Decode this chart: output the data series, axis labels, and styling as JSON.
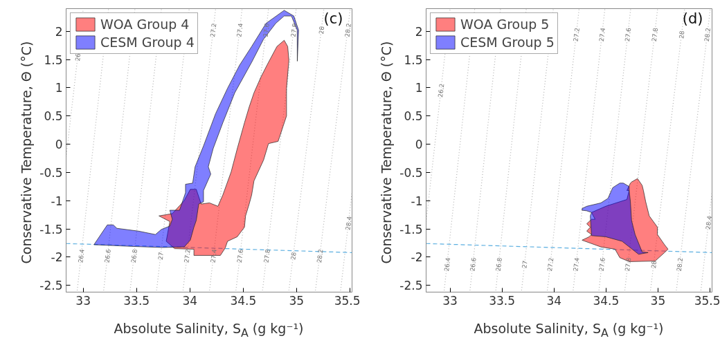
{
  "chart_data": [
    {
      "type": "area",
      "xlabel": "Absolute Salinity, S$_{A}$ (g kg⁻¹)",
      "ylabel": "Conservative Temperature,  Θ (°C)",
      "xlim": [
        32.84,
        35.52
      ],
      "ylim": [
        -2.62,
        2.4
      ],
      "xticks": [
        33,
        33.5,
        34,
        34.5,
        35,
        35.5
      ],
      "yticks": [
        -2.5,
        -2,
        -1.5,
        -1,
        -0.5,
        0,
        0.5,
        1,
        1.5,
        2
      ],
      "legend": "top left",
      "grid": false,
      "series": [
        {
          "type": "line",
          "color": "#b0b0b0",
          "line_style": "dotted",
          "x": [
            32.84,
            33.0
          ],
          "values": [
            -0.23,
            2.39
          ]
        },
        {
          "type": "line",
          "color": "#b0b0b0",
          "line_style": "dotted",
          "x": [
            32.944,
            33.237
          ],
          "values": [
            -2.59,
            2.39
          ]
        },
        {
          "type": "line",
          "color": "#b0b0b0",
          "line_style": "dotted",
          "x": [
            33.192,
            33.485
          ],
          "values": [
            -2.59,
            2.39
          ]
        },
        {
          "type": "line",
          "color": "#b0b0b0",
          "line_style": "dotted",
          "x": [
            33.44,
            33.733
          ],
          "values": [
            -2.59,
            2.39
          ]
        },
        {
          "type": "line",
          "color": "#b0b0b0",
          "line_style": "dotted",
          "x": [
            33.688,
            33.993
          ],
          "values": [
            -2.59,
            2.39
          ]
        },
        {
          "type": "line",
          "color": "#b0b0b0",
          "line_style": "dotted",
          "x": [
            33.936,
            34.241
          ],
          "values": [
            -2.59,
            2.39
          ]
        },
        {
          "type": "line",
          "color": "#b0b0b0",
          "line_style": "dotted",
          "x": [
            34.184,
            34.489
          ],
          "values": [
            -2.59,
            2.39
          ]
        },
        {
          "type": "line",
          "color": "#b0b0b0",
          "line_style": "dotted",
          "x": [
            34.432,
            34.737
          ],
          "values": [
            -2.59,
            2.39
          ]
        },
        {
          "type": "line",
          "color": "#b0b0b0",
          "line_style": "dotted",
          "x": [
            34.681,
            34.996
          ],
          "values": [
            -2.59,
            2.39
          ]
        },
        {
          "type": "line",
          "color": "#b0b0b0",
          "line_style": "dotted",
          "x": [
            34.928,
            35.256
          ],
          "values": [
            -2.59,
            2.39
          ]
        },
        {
          "type": "line",
          "color": "#b0b0b0",
          "line_style": "dotted",
          "x": [
            35.177,
            35.503
          ],
          "values": [
            -2.59,
            2.39
          ]
        },
        {
          "type": "line",
          "color": "#b0b0b0",
          "line_style": "dotted",
          "x": [
            35.413,
            35.52
          ],
          "values": [
            -2.59,
            -0.84
          ]
        },
        {
          "type": "line",
          "color": "#5aaee0",
          "line_style": "dashed",
          "x": [
            32.84,
            35.52
          ],
          "values": [
            -1.76,
            -1.92
          ]
        },
        {
          "name": "WOA Group 4",
          "color": "#ff0000",
          "x": [
            34.038,
            34.286,
            34.331,
            34.353,
            34.444,
            34.512,
            34.522,
            34.556,
            34.579,
            34.601,
            34.691,
            34.737,
            34.827,
            34.906,
            34.906,
            34.928,
            34.917,
            34.884,
            34.816,
            34.737,
            34.669,
            34.601,
            34.556,
            34.512,
            34.444,
            34.387,
            34.309,
            34.263,
            34.184,
            34.106,
            34.06,
            34.004,
            33.947,
            33.835,
            33.71,
            33.812,
            33.778,
            33.857,
            34.038
          ],
          "values": [
            -1.97,
            -1.97,
            -1.84,
            -1.72,
            -1.64,
            -1.47,
            -1.27,
            -1.06,
            -0.9,
            -0.65,
            -0.28,
            0.01,
            0.05,
            0.5,
            0.99,
            1.49,
            1.73,
            1.84,
            1.73,
            1.45,
            1.2,
            0.91,
            0.66,
            0.38,
            -0.08,
            -0.49,
            -0.9,
            -1.1,
            -1.04,
            -1.06,
            -0.8,
            -0.8,
            -1.0,
            -1.23,
            -1.27,
            -1.37,
            -1.72,
            -1.85,
            -1.86
          ]
        },
        {
          "name": "CESM Group 4",
          "color": "#0000ff",
          "x": [
            33.101,
            33.226,
            33.282,
            33.316,
            33.519,
            33.677,
            33.733,
            33.812,
            33.835,
            33.812,
            33.903,
            33.959,
            33.959,
            34.026,
            34.049,
            34.128,
            34.241,
            34.353,
            34.466,
            34.579,
            34.714,
            34.884,
            34.974,
            35.019,
            35.007,
            35.006,
            34.952,
            34.884,
            34.805,
            34.691,
            34.579,
            34.421,
            34.309,
            34.218,
            34.173,
            34.196,
            34.128,
            34.128,
            34.083,
            34.06,
            34.038,
            34.004,
            33.947,
            33.744,
            33.451
          ],
          "values": [
            -1.78,
            -1.43,
            -1.43,
            -1.49,
            -1.54,
            -1.6,
            -1.51,
            -1.45,
            -1.33,
            -1.17,
            -1.17,
            -0.86,
            -0.71,
            -0.69,
            -0.4,
            -0.03,
            0.54,
            0.99,
            1.4,
            1.73,
            2.14,
            2.37,
            2.27,
            2.02,
            1.47,
            2.02,
            2.27,
            2.27,
            2.14,
            1.86,
            1.45,
            0.91,
            0.38,
            -0.08,
            -0.4,
            -0.53,
            -0.82,
            -1.02,
            -1.06,
            -1.35,
            -1.47,
            -1.7,
            -1.82,
            -1.83,
            -1.81
          ]
        }
      ],
      "annotations": [
        "(c)",
        {
          "text": "26",
          "x": 32.948,
          "y": 1.54
        },
        {
          "text": "26.4",
          "x": 32.98,
          "y": -1.98
        },
        {
          "text": "26.6",
          "x": 33.228,
          "y": -1.98
        },
        {
          "text": "26.8",
          "x": 33.476,
          "y": -1.98
        },
        {
          "text": "27",
          "x": 33.725,
          "y": -1.98
        },
        {
          "text": "27.2",
          "x": 33.973,
          "y": -1.98
        },
        {
          "text": "27.4",
          "x": 34.221,
          "y": -1.98
        },
        {
          "text": "27.6",
          "x": 34.469,
          "y": -1.98
        },
        {
          "text": "27.8",
          "x": 34.72,
          "y": -1.98
        },
        {
          "text": "28",
          "x": 34.968,
          "y": -1.98
        },
        {
          "text": "28.2",
          "x": 35.217,
          "y": -1.98
        },
        {
          "text": "28.4",
          "x": 35.486,
          "y": -1.4
        },
        {
          "text": "27.2",
          "x": 34.218,
          "y": 2.02
        },
        {
          "text": "27.4",
          "x": 34.466,
          "y": 2.02
        },
        {
          "text": "27.6",
          "x": 34.714,
          "y": 2.02
        },
        {
          "text": "27.8",
          "x": 34.973,
          "y": 2.02
        },
        {
          "text": "28",
          "x": 35.232,
          "y": 2.02
        },
        {
          "text": "28.2",
          "x": 35.479,
          "y": 2.02
        }
      ]
    },
    {
      "type": "area",
      "xlabel": "Absolute Salinity, S$_{A}$ (g kg⁻¹)",
      "ylabel": "Conservative Temperature,  Θ (°C)",
      "xlim": [
        32.77,
        35.52
      ],
      "ylim": [
        -2.62,
        2.4
      ],
      "xticks": [
        33,
        33.5,
        34,
        34.5,
        35,
        35.5
      ],
      "yticks": [
        -2.5,
        -2,
        -1.5,
        -1,
        -0.5,
        0,
        0.5,
        1,
        1.5,
        2
      ],
      "legend": "top left",
      "grid": false,
      "series": [
        {
          "type": "line",
          "color": "#b0b0b0",
          "line_style": "dotted",
          "x": [
            32.77,
            33.0
          ],
          "values": [
            -1.38,
            2.39
          ]
        },
        {
          "type": "line",
          "color": "#b0b0b0",
          "line_style": "dotted",
          "x": [
            32.944,
            33.237
          ],
          "values": [
            -2.59,
            2.39
          ]
        },
        {
          "type": "line",
          "color": "#b0b0b0",
          "line_style": "dotted",
          "x": [
            33.192,
            33.485
          ],
          "values": [
            -2.59,
            2.39
          ]
        },
        {
          "type": "line",
          "color": "#b0b0b0",
          "line_style": "dotted",
          "x": [
            33.44,
            33.733
          ],
          "values": [
            -2.59,
            2.39
          ]
        },
        {
          "type": "line",
          "color": "#b0b0b0",
          "line_style": "dotted",
          "x": [
            33.688,
            33.993
          ],
          "values": [
            -2.59,
            2.39
          ]
        },
        {
          "type": "line",
          "color": "#b0b0b0",
          "line_style": "dotted",
          "x": [
            33.936,
            34.241
          ],
          "values": [
            -2.59,
            2.39
          ]
        },
        {
          "type": "line",
          "color": "#b0b0b0",
          "line_style": "dotted",
          "x": [
            34.184,
            34.489
          ],
          "values": [
            -2.59,
            2.39
          ]
        },
        {
          "type": "line",
          "color": "#b0b0b0",
          "line_style": "dotted",
          "x": [
            34.432,
            34.737
          ],
          "values": [
            -2.59,
            2.39
          ]
        },
        {
          "type": "line",
          "color": "#b0b0b0",
          "line_style": "dotted",
          "x": [
            34.681,
            34.996
          ],
          "values": [
            -2.59,
            2.39
          ]
        },
        {
          "type": "line",
          "color": "#b0b0b0",
          "line_style": "dotted",
          "x": [
            34.928,
            35.256
          ],
          "values": [
            -2.59,
            2.39
          ]
        },
        {
          "type": "line",
          "color": "#b0b0b0",
          "line_style": "dotted",
          "x": [
            35.177,
            35.503
          ],
          "values": [
            -2.59,
            2.39
          ]
        },
        {
          "type": "line",
          "color": "#b0b0b0",
          "line_style": "dotted",
          "x": [
            35.413,
            35.52
          ],
          "values": [
            -2.59,
            -0.84
          ]
        },
        {
          "type": "line",
          "color": "#5aaee0",
          "line_style": "dashed",
          "x": [
            32.77,
            35.52
          ],
          "values": [
            -1.76,
            -1.92
          ]
        },
        {
          "name": "WOA Group 5",
          "color": "#ff0000",
          "x": [
            34.746,
            34.803,
            34.848,
            34.86,
            34.882,
            34.916,
            34.995,
            34.995,
            35.063,
            35.097,
            35.063,
            34.973,
            34.723,
            34.633,
            34.587,
            34.451,
            34.27,
            34.338,
            34.361,
            34.315,
            34.349,
            34.315,
            34.361,
            34.395,
            34.361,
            34.497,
            34.701,
            34.723,
            34.701,
            34.735
          ],
          "values": [
            -0.67,
            -0.61,
            -0.73,
            -0.82,
            -1.02,
            -1.27,
            -1.47,
            -1.6,
            -1.78,
            -1.86,
            -1.92,
            -2.07,
            -2.08,
            -2.01,
            -1.86,
            -1.82,
            -1.7,
            -1.64,
            -1.6,
            -1.54,
            -1.47,
            -1.41,
            -1.33,
            -1.33,
            -1.21,
            -1.1,
            -0.98,
            -0.82,
            -0.82,
            -0.69
          ]
        },
        {
          "name": "CESM Group 5",
          "color": "#0000ff",
          "x": [
            34.27,
            34.315,
            34.451,
            34.519,
            34.565,
            34.633,
            34.667,
            34.723,
            34.723,
            34.735,
            34.746,
            34.78,
            34.848,
            34.905,
            34.814,
            34.655,
            34.497,
            34.361,
            34.349,
            34.361,
            34.315,
            34.27
          ],
          "values": [
            -1.14,
            -1.1,
            -1.04,
            -0.96,
            -0.77,
            -0.69,
            -0.69,
            -0.75,
            -0.82,
            -1.02,
            -1.35,
            -1.6,
            -1.91,
            -1.92,
            -1.95,
            -1.72,
            -1.64,
            -1.62,
            -1.27,
            -1.21,
            -1.18,
            -1.17
          ]
        }
      ],
      "annotations": [
        "(d)",
        {
          "text": "26.2",
          "x": 32.912,
          "y": 0.95
        },
        {
          "text": "26.4",
          "x": 32.971,
          "y": -2.13
        },
        {
          "text": "26.6",
          "x": 33.219,
          "y": -2.13
        },
        {
          "text": "26.8",
          "x": 33.467,
          "y": -2.13
        },
        {
          "text": "27",
          "x": 33.716,
          "y": -2.13
        },
        {
          "text": "27.2",
          "x": 33.964,
          "y": -2.13
        },
        {
          "text": "27.4",
          "x": 34.212,
          "y": -2.13
        },
        {
          "text": "27.6",
          "x": 34.46,
          "y": -2.13
        },
        {
          "text": "27.8",
          "x": 34.71,
          "y": -2.13
        },
        {
          "text": "28",
          "x": 34.958,
          "y": -2.13
        },
        {
          "text": "28.2",
          "x": 35.207,
          "y": -2.13
        },
        {
          "text": "28.4",
          "x": 35.486,
          "y": -1.39
        },
        {
          "text": "27.2",
          "x": 34.213,
          "y": 1.94
        },
        {
          "text": "27.4",
          "x": 34.461,
          "y": 1.94
        },
        {
          "text": "27.6",
          "x": 34.709,
          "y": 1.94
        },
        {
          "text": "27.8",
          "x": 34.968,
          "y": 1.94
        },
        {
          "text": "28",
          "x": 35.226,
          "y": 1.94
        },
        {
          "text": "28.2",
          "x": 35.474,
          "y": 1.94
        }
      ]
    }
  ]
}
